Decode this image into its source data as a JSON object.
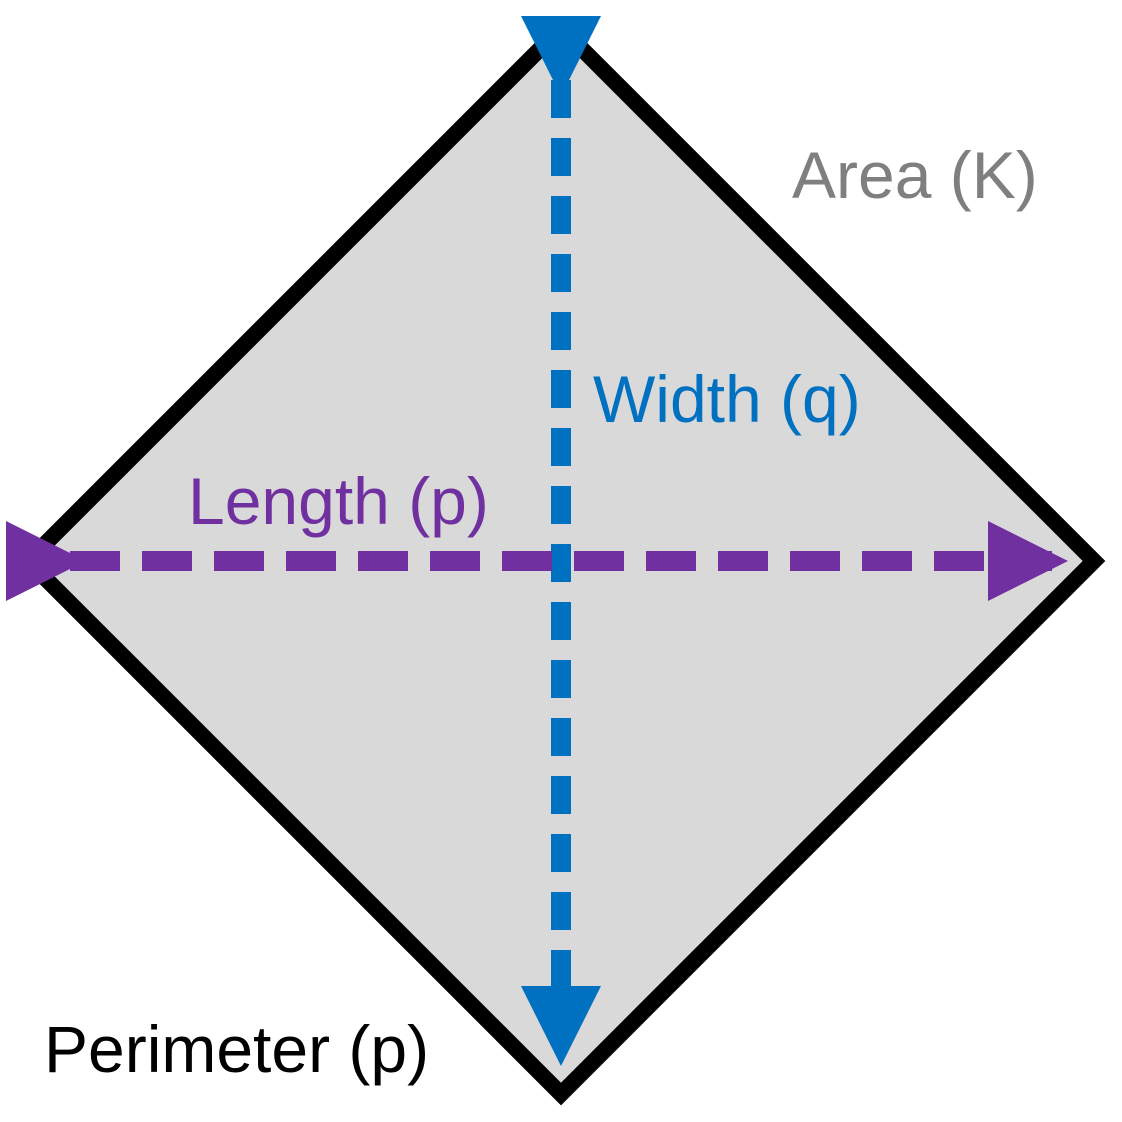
{
  "labels": {
    "area": "Area (K)",
    "width": "Width (q)",
    "length": "Length (p)",
    "perimeter": "Perimeter (p)"
  },
  "colors": {
    "shape_fill": "#d9d9d9",
    "shape_outline": "#000000",
    "area_text": "#7f7f7f",
    "width_arrow": "#0070c0",
    "length_arrow": "#7030a0",
    "perimeter_text": "#000000"
  }
}
